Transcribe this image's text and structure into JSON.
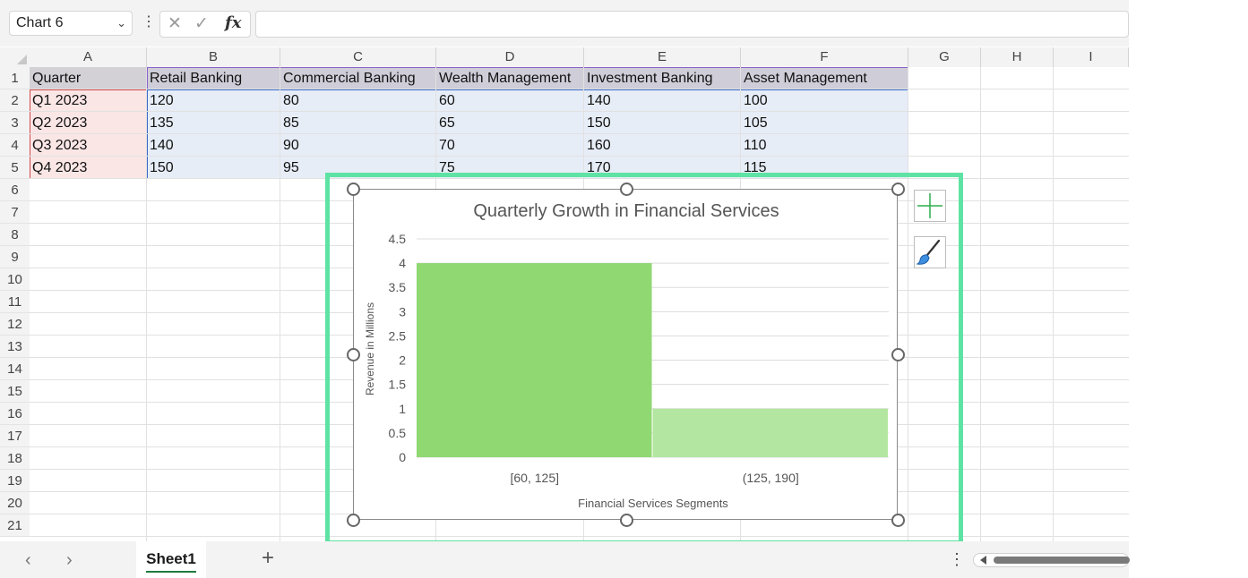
{
  "name_box": {
    "value": "Chart 6"
  },
  "formula_bar": {
    "value": ""
  },
  "columns": [
    "A",
    "B",
    "C",
    "D",
    "E",
    "F",
    "G",
    "H",
    "I"
  ],
  "rows": [
    "1",
    "2",
    "3",
    "4",
    "5",
    "6",
    "7",
    "8",
    "9",
    "10",
    "11",
    "12",
    "13",
    "14",
    "15",
    "16",
    "17",
    "18",
    "19",
    "20",
    "21"
  ],
  "table": {
    "headers": [
      "Quarter",
      "Retail Banking",
      "Commercial Banking",
      "Wealth Management",
      "Investment Banking",
      "Asset Management"
    ],
    "rows": [
      [
        "Q1 2023",
        "120",
        "80",
        "60",
        "140",
        "100"
      ],
      [
        "Q2 2023",
        "135",
        "85",
        "65",
        "150",
        "105"
      ],
      [
        "Q3 2023",
        "140",
        "90",
        "70",
        "160",
        "110"
      ],
      [
        "Q4 2023",
        "150",
        "95",
        "75",
        "170",
        "115"
      ]
    ]
  },
  "chart_data": {
    "type": "bar",
    "title": "Quarterly Growth in Financial Services",
    "xlabel": "Financial Services Segments",
    "ylabel": "Revenue in Millions",
    "categories": [
      "[60, 125]",
      "(125, 190]"
    ],
    "values": [
      4,
      1
    ],
    "ylim": [
      0,
      4.5
    ],
    "yticks": [
      "0",
      "0.5",
      "1",
      "1.5",
      "2",
      "2.5",
      "3",
      "3.5",
      "4",
      "4.5"
    ],
    "grid": true,
    "colors": [
      "#8fd872",
      "#b3e6a0"
    ]
  },
  "chart_buttons": {
    "add_element": "plus-icon",
    "styles": "brush-icon"
  },
  "sheets": [
    {
      "name": "Sheet1",
      "active": true
    }
  ],
  "colors": {
    "selection": "#5ee3a4",
    "accent_tab": "#1e7a3d"
  }
}
